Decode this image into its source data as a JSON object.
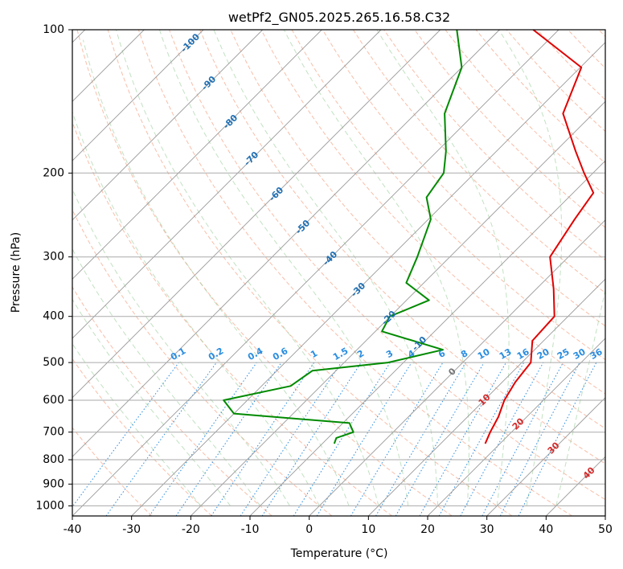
{
  "title": "wetPf2_GN05.2025.265.16.58.C32",
  "chart_data": {
    "type": "skew-t",
    "title": "wetPf2_GN05.2025.265.16.58.C32",
    "xlabel": "Temperature (°C)",
    "ylabel": "Pressure (hPa)",
    "xlim": [
      -40,
      50
    ],
    "ylim": [
      1050,
      100
    ],
    "y_scale": "log",
    "x_ticks": [
      -40,
      -30,
      -20,
      -10,
      0,
      10,
      20,
      30,
      40,
      50
    ],
    "y_ticks": [
      100,
      200,
      300,
      400,
      500,
      600,
      700,
      800,
      900,
      1000
    ],
    "grid": true,
    "isotherm_labels": [
      -100,
      -90,
      -80,
      -70,
      -60,
      -50,
      -40,
      -30,
      -20,
      -10
    ],
    "mixing_ratio_labels": [
      "0.1",
      "0.2",
      "0.4",
      "0.6",
      "1",
      "1.5",
      "2",
      "3",
      "4",
      "6",
      "8",
      "10",
      "13",
      "16",
      "20",
      "25",
      "30",
      "36"
    ],
    "moist_adiabat_labels": [
      "0",
      "10",
      "20",
      "30",
      "40"
    ],
    "series": [
      {
        "name": "",
        "color": "#e00000",
        "points": [
          [
            100,
            -44.3
          ],
          [
            120,
            -29.8
          ],
          [
            150,
            -25.1
          ],
          [
            180,
            -16.6
          ],
          [
            200,
            -11.5
          ],
          [
            220,
            -6.6
          ],
          [
            250,
            -5.3
          ],
          [
            300,
            -3.1
          ],
          [
            350,
            2.9
          ],
          [
            400,
            7.7
          ],
          [
            450,
            8.1
          ],
          [
            500,
            11.5
          ],
          [
            550,
            12.2
          ],
          [
            600,
            13.4
          ],
          [
            650,
            15.2
          ],
          [
            700,
            16.4
          ],
          [
            740,
            17.5
          ]
        ]
      },
      {
        "name": "",
        "color": "#008a00",
        "points": [
          [
            100,
            -57.2
          ],
          [
            120,
            -50.0
          ],
          [
            150,
            -45.1
          ],
          [
            180,
            -38.5
          ],
          [
            200,
            -35.2
          ],
          [
            225,
            -34.0
          ],
          [
            250,
            -29.6
          ],
          [
            300,
            -25.5
          ],
          [
            340,
            -23.0
          ],
          [
            370,
            -16.2
          ],
          [
            400,
            -20.1
          ],
          [
            430,
            -18.9
          ],
          [
            470,
            -5.5
          ],
          [
            500,
            -12.6
          ],
          [
            520,
            -24.0
          ],
          [
            560,
            -25.1
          ],
          [
            600,
            -34.0
          ],
          [
            640,
            -30.0
          ],
          [
            670,
            -8.9
          ],
          [
            700,
            -6.7
          ],
          [
            720,
            -8.6
          ],
          [
            740,
            -8.0
          ]
        ]
      }
    ]
  }
}
